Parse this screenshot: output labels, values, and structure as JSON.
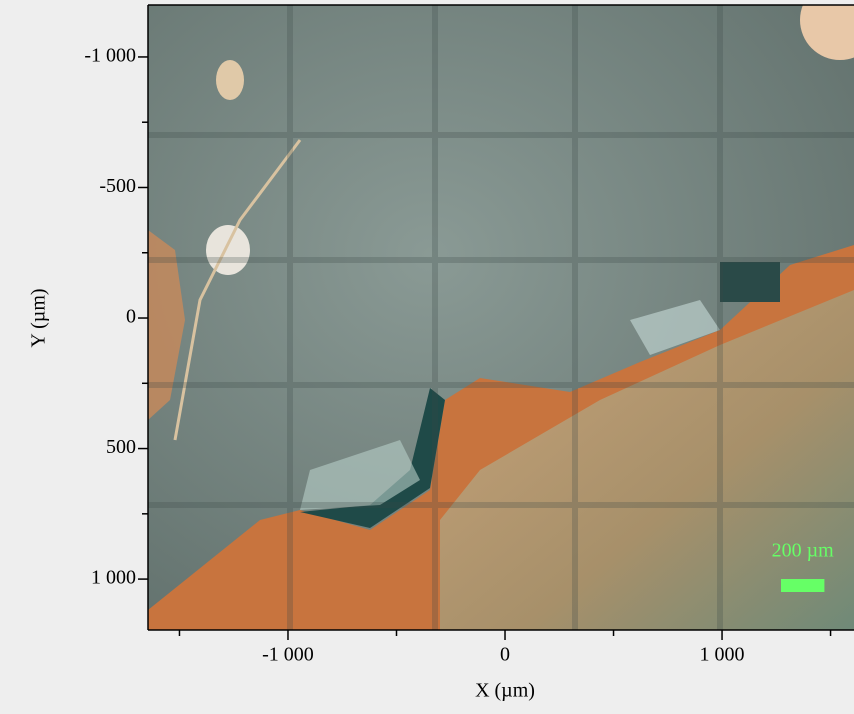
{
  "chart_data": {
    "type": "image",
    "xlabel": "X (µm)",
    "ylabel": "Y (µm)",
    "xlim": [
      -1645,
      1608
    ],
    "ylim": [
      -1199,
      1195
    ],
    "xticks": [
      {
        "value": -1000,
        "label": "-1 000"
      },
      0,
      {
        "value": 1000,
        "label": "1 000"
      }
    ],
    "xminorticks": [
      -1500,
      -500,
      500,
      1500
    ],
    "yticks": [
      {
        "value": -1000,
        "label": "-1 000"
      },
      -500,
      0,
      500,
      {
        "value": 1000,
        "label": "1 000"
      }
    ],
    "yminorticks": [
      -750,
      -250,
      250,
      750
    ],
    "scalebar": {
      "label": "200 µm",
      "length": 200,
      "color": "#66ff66"
    }
  }
}
